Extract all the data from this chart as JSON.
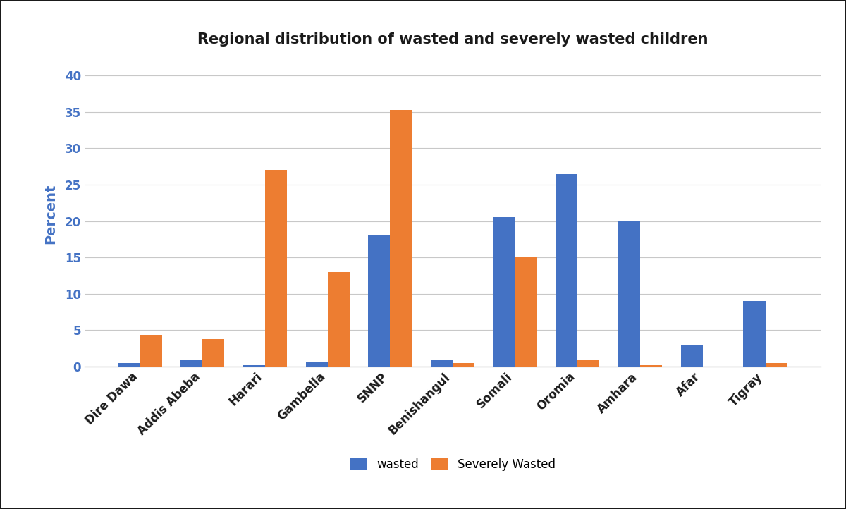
{
  "title": "Regional distribution of wasted and severely wasted children",
  "categories": [
    "Dire Dawa",
    "Addis Abeba",
    "Harari",
    "Gambella",
    "SNNP",
    "Benishangul",
    "Somali",
    "Oromia",
    "Amhara",
    "Afar",
    "Tigray"
  ],
  "wasted": [
    0.5,
    1.0,
    0.2,
    0.7,
    18.0,
    1.0,
    20.5,
    26.5,
    20.0,
    3.0,
    9.0
  ],
  "severely_wasted": [
    4.3,
    3.8,
    27.0,
    13.0,
    35.3,
    0.5,
    15.0,
    1.0,
    0.2,
    0.0,
    0.5
  ],
  "wasted_color": "#4472C4",
  "severely_wasted_color": "#ED7D31",
  "ylabel": "Percent",
  "ylim": [
    0,
    42
  ],
  "yticks": [
    0,
    5,
    10,
    15,
    20,
    25,
    30,
    35,
    40
  ],
  "bar_width": 0.35,
  "legend_labels": [
    "wasted",
    "Severely Wasted"
  ],
  "background_color": "#FFFFFF",
  "title_fontsize": 15,
  "axis_label_fontsize": 14,
  "tick_fontsize": 12,
  "legend_fontsize": 12,
  "tick_color": "#4472C4",
  "ylabel_color": "#4472C4",
  "border_color": "#1a1a1a",
  "gridline_color": "#C8C8C8"
}
